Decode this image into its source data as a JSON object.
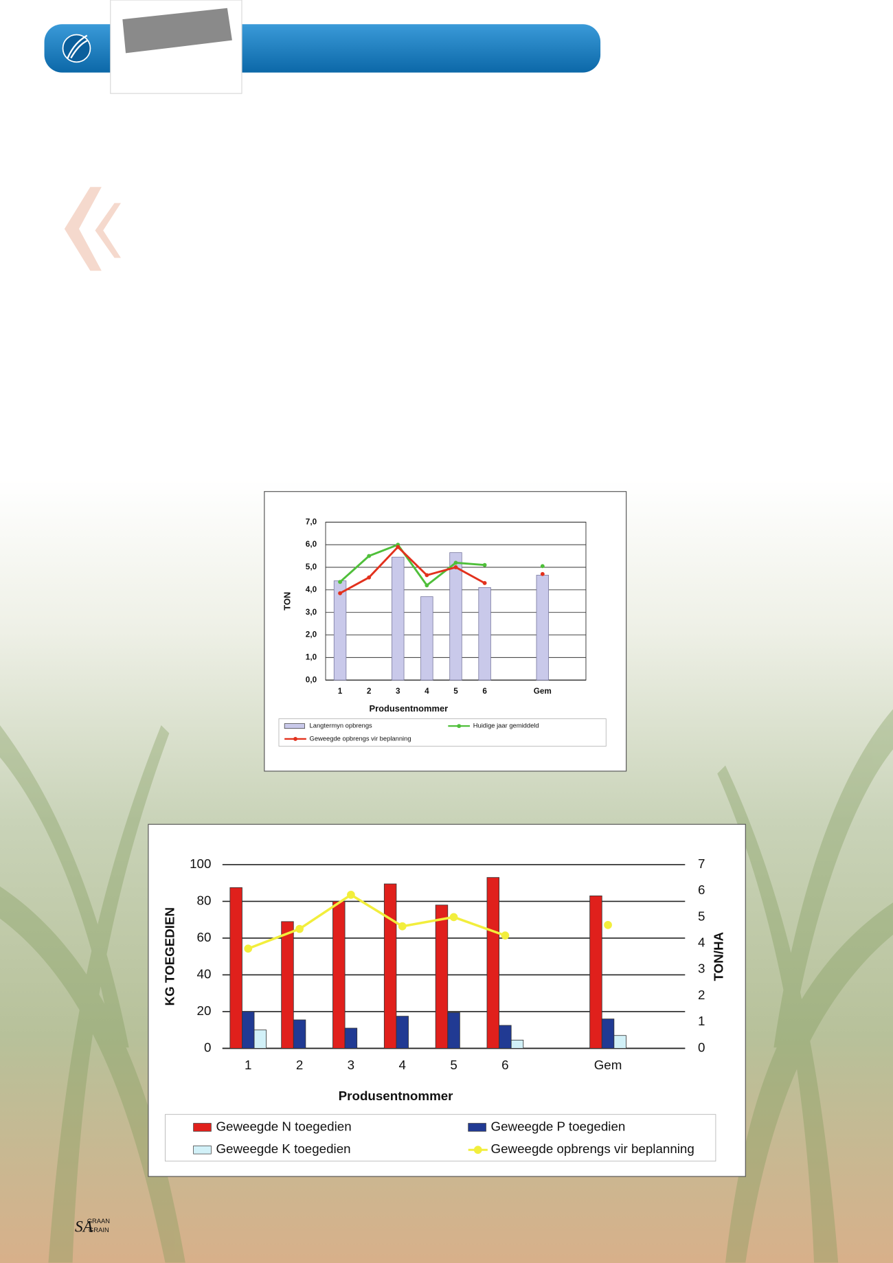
{
  "charts": [
    {
      "chart_data": {
        "type": "bar",
        "categories": [
          "1",
          "2",
          "3",
          "4",
          "5",
          "6",
          null,
          "Gem",
          null
        ],
        "x_label": "Produsentnommer",
        "y_label": "TON",
        "ylim": [
          0,
          7
        ],
        "yticks": [
          {
            "value": 0,
            "label": "0,0"
          },
          {
            "value": 1,
            "label": "1,0"
          },
          {
            "value": 2,
            "label": "2,0"
          },
          {
            "value": 3,
            "label": "3,0"
          },
          {
            "value": 4,
            "label": "4,0"
          },
          {
            "value": 5,
            "label": "5,0"
          },
          {
            "value": 6,
            "label": "6,0"
          },
          {
            "value": 7,
            "label": "7,0"
          }
        ],
        "grid": true,
        "series": [
          {
            "name": "Langtermyn opbrengs",
            "type": "bar",
            "color": "#c9c9ea",
            "values": [
              4.4,
              null,
              5.45,
              3.7,
              5.65,
              4.1,
              null,
              4.65,
              null
            ]
          },
          {
            "name": "Huidige jaar gemiddeld",
            "type": "line",
            "color": "#4fbf3a",
            "values": [
              4.35,
              5.5,
              6.0,
              4.2,
              5.2,
              5.1,
              null,
              5.05,
              null
            ]
          },
          {
            "name": "Geweegde opbrengs vir beplanning",
            "type": "line",
            "color": "#e2311d",
            "values": [
              3.85,
              4.55,
              5.9,
              4.65,
              5.0,
              4.3,
              null,
              4.7,
              null
            ]
          }
        ]
      }
    },
    {
      "chart_data": {
        "type": "bar",
        "categories": [
          "1",
          "2",
          "3",
          "4",
          "5",
          "6",
          null,
          "Gem",
          null
        ],
        "x_label": "Produsentnommer",
        "y_label": "KG TOEGEDIEN",
        "y2_label": "TON/HA",
        "ylim": [
          0,
          100
        ],
        "yticks": [
          0,
          20,
          40,
          60,
          80,
          100
        ],
        "y2lim": [
          0,
          7
        ],
        "y2ticks": [
          0,
          1,
          2,
          3,
          4,
          5,
          6,
          7
        ],
        "grid": true,
        "series": [
          {
            "name": "Geweegde N toegedien",
            "type": "bar",
            "color": "#e0201c",
            "values": [
              87.5,
              69,
              80,
              89.5,
              78,
              93,
              null,
              83,
              null
            ]
          },
          {
            "name": "Geweegde P toegedien",
            "type": "bar",
            "color": "#213a93",
            "values": [
              20,
              15.5,
              11,
              17.5,
              19.5,
              12.5,
              null,
              16,
              null
            ]
          },
          {
            "name": "Geweegde K toegedien",
            "type": "bar",
            "color": "#d2f1f8",
            "values": [
              10,
              null,
              null,
              null,
              null,
              4.5,
              null,
              7,
              null
            ]
          },
          {
            "name": "Geweegde opbrengs vir beplanning",
            "type": "line",
            "axis": "y2",
            "color": "#f2ee3c",
            "values": [
              3.8,
              4.55,
              5.85,
              4.65,
              5.0,
              4.3,
              null,
              4.7,
              null
            ]
          }
        ]
      }
    }
  ],
  "footer": {
    "mark": "SA",
    "lines": [
      "GRAAN",
      "GRAIN"
    ]
  }
}
